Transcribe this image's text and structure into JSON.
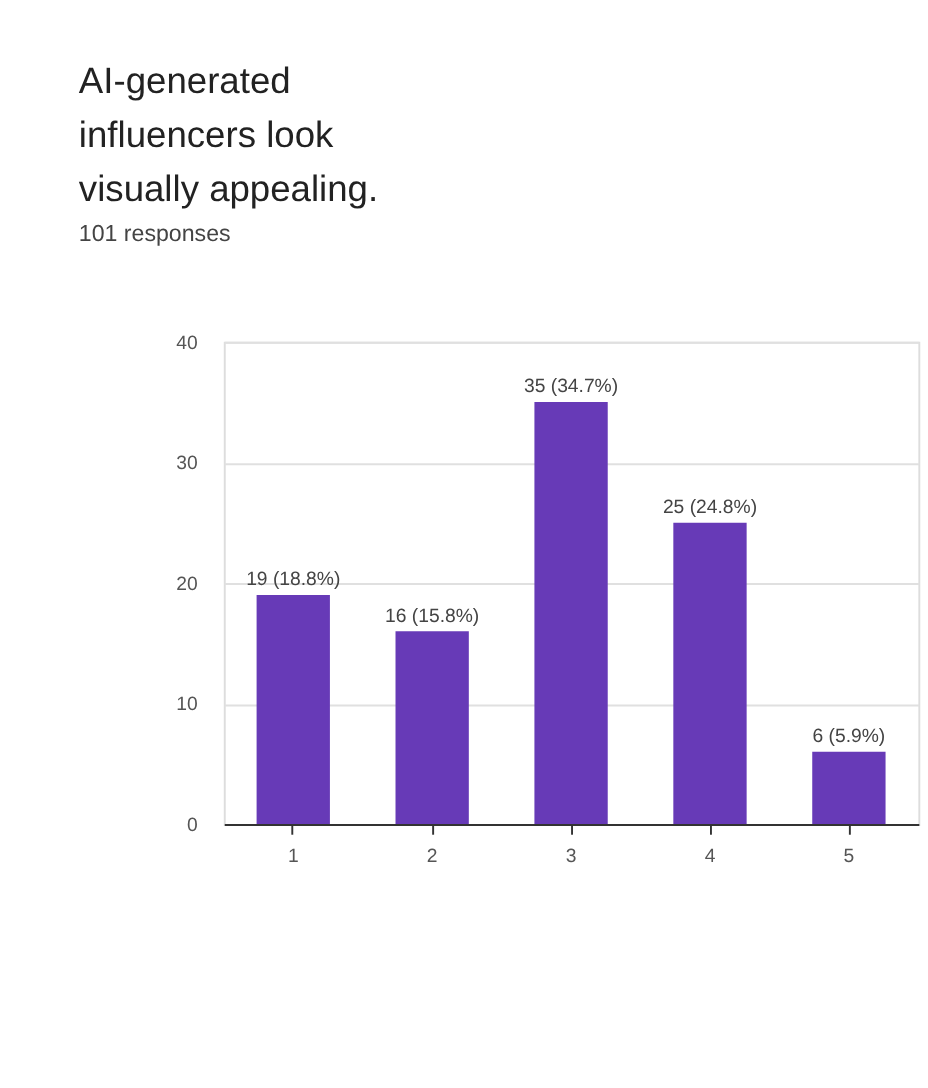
{
  "chart_data": {
    "type": "bar",
    "title": "AI-generated influencers look visually appealing.",
    "subtitle": "101 responses",
    "categories": [
      "1",
      "2",
      "3",
      "4",
      "5"
    ],
    "values": [
      19,
      16,
      35,
      25,
      6
    ],
    "value_labels": [
      "19 (18.8%)",
      "16 (15.8%)",
      "35 (34.7%)",
      "25 (24.8%)",
      "6 (5.9%)"
    ],
    "color": "#673ab7",
    "ylim": [
      0,
      40
    ],
    "yticks": [
      0,
      10,
      20,
      30,
      40
    ],
    "grid": "y"
  }
}
